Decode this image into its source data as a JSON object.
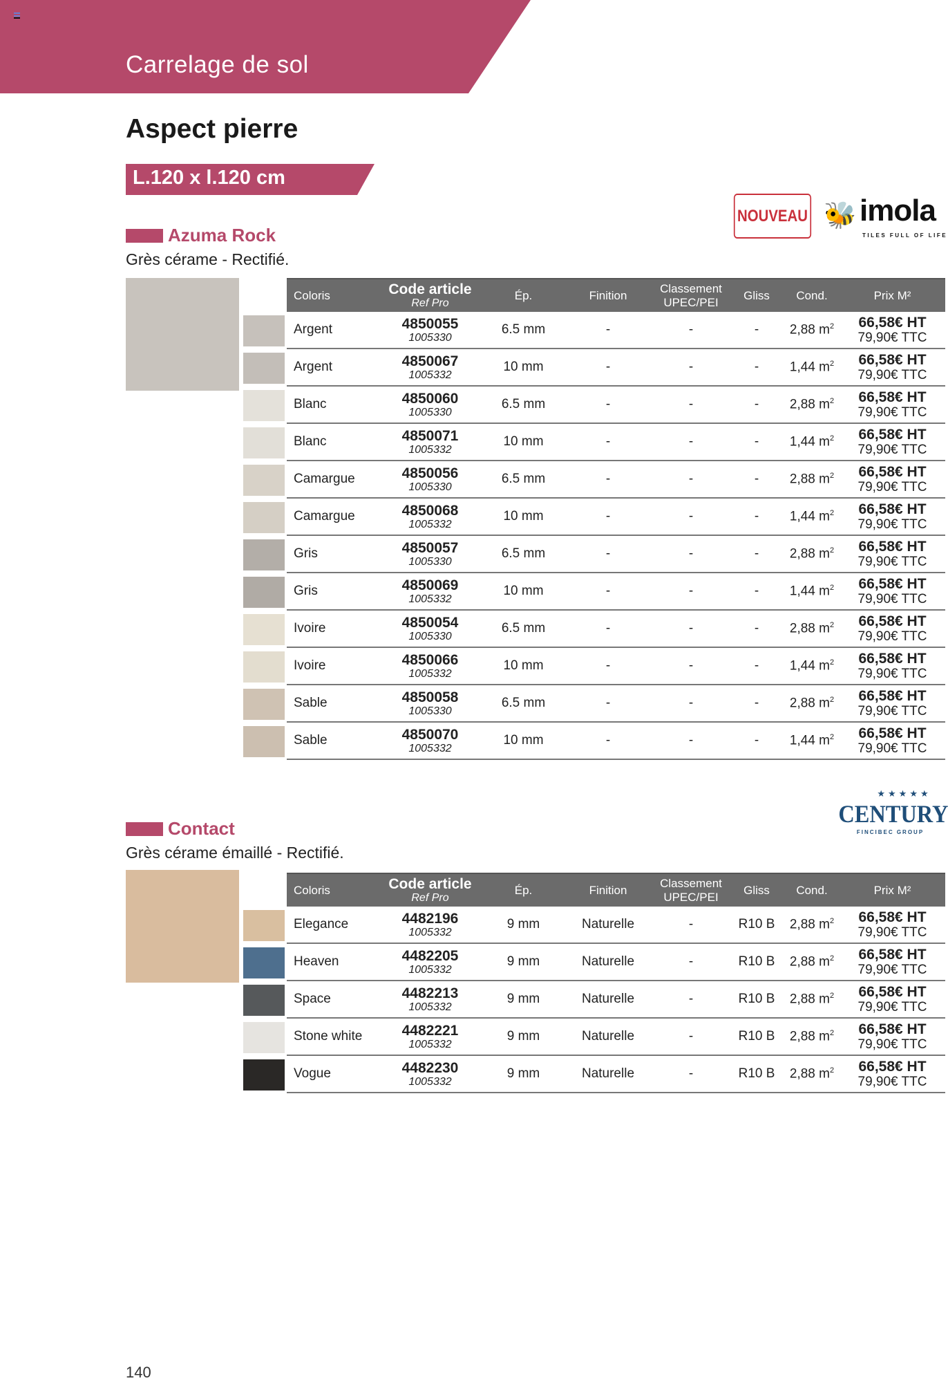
{
  "header": {
    "section_title": "Carrelage de sol",
    "page_title": "Aspect pierre",
    "size_label": "L.120 x l.120 cm",
    "accent_color": "#b5496a"
  },
  "columns": {
    "coloris": "Coloris",
    "code": "Code article",
    "ref": "Ref Pro",
    "ep": "Ép.",
    "finition": "Finition",
    "classement_1": "Classement",
    "classement_2": "UPEC/PEI",
    "gliss": "Gliss",
    "cond": "Cond.",
    "prix": "Prix M²"
  },
  "badges": {
    "nouveau": "NOUVEAU",
    "imola": "imola",
    "imola_tagline": "TILES FULL OF LIFE",
    "century": "CENTURY",
    "century_stars": "★★★★★",
    "century_group": "FINCIBEC GROUP"
  },
  "products": [
    {
      "name": "Azuma Rock",
      "subtitle": "Grès cérame - Rectifié.",
      "image_color": "#c8c3bd",
      "rows": [
        {
          "coloris": "Argent",
          "code": "4850055",
          "ref": "1005330",
          "ep": "6.5 mm",
          "finition": "-",
          "classement": "-",
          "gliss": "-",
          "cond": "2,88 m",
          "prix_ht": "66,58€ HT",
          "prix_ttc": "79,90€ TTC",
          "swatch": "#c6c1bb"
        },
        {
          "coloris": "Argent",
          "code": "4850067",
          "ref": "1005332",
          "ep": "10 mm",
          "finition": "-",
          "classement": "-",
          "gliss": "-",
          "cond": "1,44 m",
          "prix_ht": "66,58€ HT",
          "prix_ttc": "79,90€ TTC",
          "swatch": "#c3beb8"
        },
        {
          "coloris": "Blanc",
          "code": "4850060",
          "ref": "1005330",
          "ep": "6.5 mm",
          "finition": "-",
          "classement": "-",
          "gliss": "-",
          "cond": "2,88 m",
          "prix_ht": "66,58€ HT",
          "prix_ttc": "79,90€ TTC",
          "swatch": "#e4e1da"
        },
        {
          "coloris": "Blanc",
          "code": "4850071",
          "ref": "1005332",
          "ep": "10 mm",
          "finition": "-",
          "classement": "-",
          "gliss": "-",
          "cond": "1,44 m",
          "prix_ht": "66,58€ HT",
          "prix_ttc": "79,90€ TTC",
          "swatch": "#e2dfd8"
        },
        {
          "coloris": "Camargue",
          "code": "4850056",
          "ref": "1005330",
          "ep": "6.5 mm",
          "finition": "-",
          "classement": "-",
          "gliss": "-",
          "cond": "2,88 m",
          "prix_ht": "66,58€ HT",
          "prix_ttc": "79,90€ TTC",
          "swatch": "#d8d2c8"
        },
        {
          "coloris": "Camargue",
          "code": "4850068",
          "ref": "1005332",
          "ep": "10 mm",
          "finition": "-",
          "classement": "-",
          "gliss": "-",
          "cond": "1,44 m",
          "prix_ht": "66,58€ HT",
          "prix_ttc": "79,90€ TTC",
          "swatch": "#d5cfc5"
        },
        {
          "coloris": "Gris",
          "code": "4850057",
          "ref": "1005330",
          "ep": "6.5 mm",
          "finition": "-",
          "classement": "-",
          "gliss": "-",
          "cond": "2,88 m",
          "prix_ht": "66,58€ HT",
          "prix_ttc": "79,90€ TTC",
          "swatch": "#b3aea8"
        },
        {
          "coloris": "Gris",
          "code": "4850069",
          "ref": "1005332",
          "ep": "10 mm",
          "finition": "-",
          "classement": "-",
          "gliss": "-",
          "cond": "1,44 m",
          "prix_ht": "66,58€ HT",
          "prix_ttc": "79,90€ TTC",
          "swatch": "#b0aba5"
        },
        {
          "coloris": "Ivoire",
          "code": "4850054",
          "ref": "1005330",
          "ep": "6.5 mm",
          "finition": "-",
          "classement": "-",
          "gliss": "-",
          "cond": "2,88 m",
          "prix_ht": "66,58€ HT",
          "prix_ttc": "79,90€ TTC",
          "swatch": "#e6e0d2"
        },
        {
          "coloris": "Ivoire",
          "code": "4850066",
          "ref": "1005332",
          "ep": "10 mm",
          "finition": "-",
          "classement": "-",
          "gliss": "-",
          "cond": "1,44 m",
          "prix_ht": "66,58€ HT",
          "prix_ttc": "79,90€ TTC",
          "swatch": "#e3ddcf"
        },
        {
          "coloris": "Sable",
          "code": "4850058",
          "ref": "1005330",
          "ep": "6.5 mm",
          "finition": "-",
          "classement": "-",
          "gliss": "-",
          "cond": "2,88 m",
          "prix_ht": "66,58€ HT",
          "prix_ttc": "79,90€ TTC",
          "swatch": "#cfc2b3"
        },
        {
          "coloris": "Sable",
          "code": "4850070",
          "ref": "1005332",
          "ep": "10 mm",
          "finition": "-",
          "classement": "-",
          "gliss": "-",
          "cond": "1,44 m",
          "prix_ht": "66,58€ HT",
          "prix_ttc": "79,90€ TTC",
          "swatch": "#ccbfb0"
        }
      ]
    },
    {
      "name": "Contact",
      "subtitle": "Grès cérame émaillé - Rectifié.",
      "image_color": "#d9bc9e",
      "rows": [
        {
          "coloris": "Elegance",
          "code": "4482196",
          "ref": "1005332",
          "ep": "9 mm",
          "finition": "Naturelle",
          "classement": "-",
          "gliss": "R10 B",
          "cond": "2,88 m",
          "prix_ht": "66,58€ HT",
          "prix_ttc": "79,90€ TTC",
          "swatch": "#d9bfa0"
        },
        {
          "coloris": "Heaven",
          "code": "4482205",
          "ref": "1005332",
          "ep": "9 mm",
          "finition": "Naturelle",
          "classement": "-",
          "gliss": "R10 B",
          "cond": "2,88 m",
          "prix_ht": "66,58€ HT",
          "prix_ttc": "79,90€ TTC",
          "swatch": "#4e6f8e"
        },
        {
          "coloris": "Space",
          "code": "4482213",
          "ref": "1005332",
          "ep": "9 mm",
          "finition": "Naturelle",
          "classement": "-",
          "gliss": "R10 B",
          "cond": "2,88 m",
          "prix_ht": "66,58€ HT",
          "prix_ttc": "79,90€ TTC",
          "swatch": "#56595b"
        },
        {
          "coloris": "Stone white",
          "code": "4482221",
          "ref": "1005332",
          "ep": "9 mm",
          "finition": "Naturelle",
          "classement": "-",
          "gliss": "R10 B",
          "cond": "2,88 m",
          "prix_ht": "66,58€ HT",
          "prix_ttc": "79,90€ TTC",
          "swatch": "#e6e4e0"
        },
        {
          "coloris": "Vogue",
          "code": "4482230",
          "ref": "1005332",
          "ep": "9 mm",
          "finition": "Naturelle",
          "classement": "-",
          "gliss": "R10 B",
          "cond": "2,88 m",
          "prix_ht": "66,58€ HT",
          "prix_ttc": "79,90€ TTC",
          "swatch": "#2a2826"
        }
      ]
    }
  ],
  "footer": {
    "page_number": "140"
  }
}
